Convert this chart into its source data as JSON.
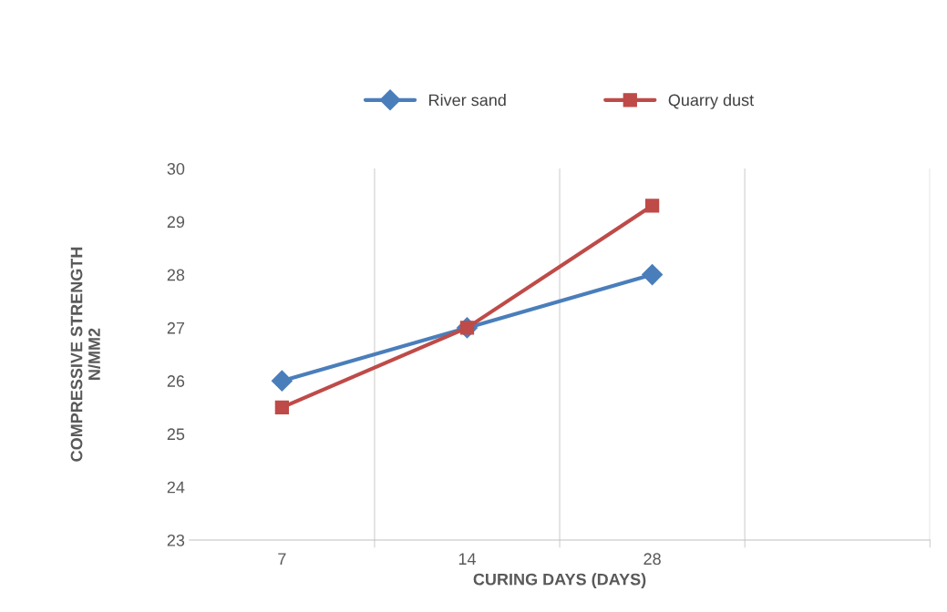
{
  "chart_data": {
    "type": "line",
    "xlabel": "CURING DAYS (DAYS)",
    "ylabel": "COMPRESSIVE STRENGTH\nN/MM2",
    "categories": [
      "7",
      "14",
      "28",
      null
    ],
    "series": [
      {
        "name": "River sand",
        "color": "#4a7ebb",
        "marker": "diamond",
        "values": [
          26,
          27,
          28,
          null
        ]
      },
      {
        "name": "Quarry dust",
        "color": "#be4b48",
        "marker": "square",
        "values": [
          25.5,
          27,
          29.3,
          null
        ]
      }
    ],
    "ylim": [
      23,
      30
    ],
    "yticks": [
      23,
      24,
      25,
      26,
      27,
      28,
      29,
      30
    ],
    "grid": "x",
    "legend": "top",
    "line_style": "solid"
  }
}
